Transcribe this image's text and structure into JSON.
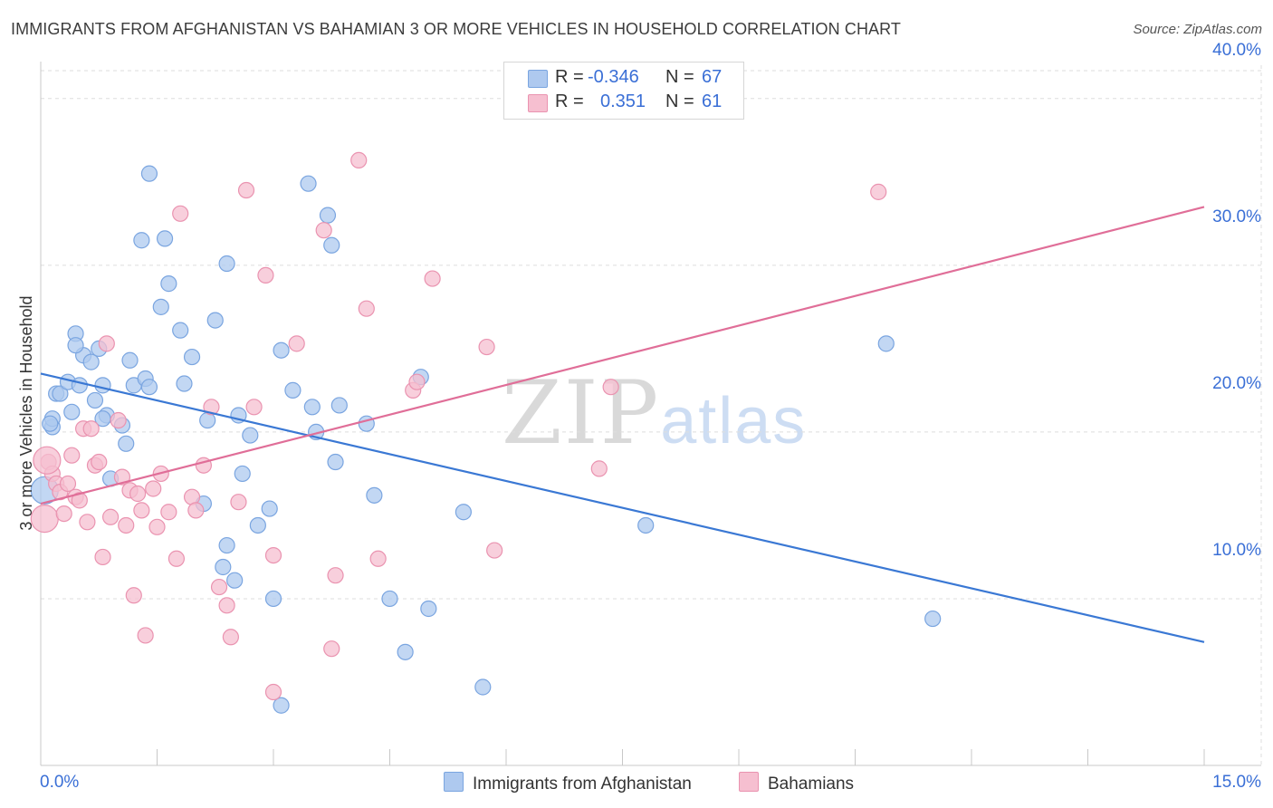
{
  "header": {
    "title": "IMMIGRANTS FROM AFGHANISTAN VS BAHAMIAN 3 OR MORE VEHICLES IN HOUSEHOLD CORRELATION CHART",
    "source": "Source: ZipAtlas.com"
  },
  "watermark": {
    "zip": "ZIP",
    "atlas": "atlas"
  },
  "legend": {
    "rows": [
      {
        "r_label": "R =",
        "r_value": "-0.346",
        "n_label": "N =",
        "n_value": "67"
      },
      {
        "r_label": "R =",
        "r_value": "0.351",
        "n_label": "N =",
        "n_value": "61"
      }
    ]
  },
  "colors": {
    "blue_fill": "#aec9ef",
    "blue_stroke": "#7aa5e0",
    "blue_line": "#3a78d4",
    "pink_fill": "#f6bfd0",
    "pink_stroke": "#ea93b0",
    "pink_line": "#e06e98",
    "axis_label": "#3a6fd6",
    "grid": "#dedede"
  },
  "chart_data": {
    "type": "scatter",
    "title": "IMMIGRANTS FROM AFGHANISTAN VS BAHAMIAN 3 OR MORE VEHICLES IN HOUSEHOLD CORRELATION CHART",
    "xlabel": "",
    "ylabel": "3 or more Vehicles in Household",
    "xlim": [
      0,
      15
    ],
    "ylim": [
      0,
      42
    ],
    "x_tick_labels": [
      "0.0%",
      "15.0%"
    ],
    "y_ticks": [
      10,
      20,
      30,
      40
    ],
    "y_tick_labels": [
      "10.0%",
      "20.0%",
      "30.0%",
      "40.0%"
    ],
    "series": [
      {
        "name": "Immigrants from Afghanistan",
        "color": "blue",
        "trend": {
          "x": [
            0,
            15
          ],
          "y": [
            23.5,
            7.4
          ]
        },
        "points": [
          [
            0.05,
            16.5
          ],
          [
            0.15,
            20.3
          ],
          [
            0.2,
            22.3
          ],
          [
            0.15,
            20.8
          ],
          [
            0.25,
            22.3
          ],
          [
            0.35,
            23.0
          ],
          [
            0.45,
            25.9
          ],
          [
            0.4,
            21.2
          ],
          [
            0.55,
            24.6
          ],
          [
            0.5,
            22.8
          ],
          [
            0.45,
            25.2
          ],
          [
            0.75,
            25.0
          ],
          [
            0.7,
            21.9
          ],
          [
            0.8,
            22.8
          ],
          [
            0.85,
            21.0
          ],
          [
            0.8,
            20.8
          ],
          [
            1.05,
            20.4
          ],
          [
            1.15,
            24.3
          ],
          [
            1.2,
            22.8
          ],
          [
            1.35,
            23.2
          ],
          [
            1.1,
            19.3
          ],
          [
            1.4,
            22.7
          ],
          [
            1.3,
            31.5
          ],
          [
            1.6,
            31.6
          ],
          [
            1.65,
            28.9
          ],
          [
            1.55,
            27.5
          ],
          [
            1.4,
            35.5
          ],
          [
            1.8,
            26.1
          ],
          [
            1.85,
            22.9
          ],
          [
            1.95,
            24.5
          ],
          [
            2.15,
            20.7
          ],
          [
            2.25,
            26.7
          ],
          [
            2.4,
            30.1
          ],
          [
            2.55,
            21.0
          ],
          [
            2.6,
            17.5
          ],
          [
            2.7,
            19.8
          ],
          [
            2.1,
            15.7
          ],
          [
            2.4,
            13.2
          ],
          [
            2.35,
            11.9
          ],
          [
            2.5,
            11.1
          ],
          [
            2.8,
            14.4
          ],
          [
            2.95,
            15.4
          ],
          [
            3.0,
            10.0
          ],
          [
            3.1,
            24.9
          ],
          [
            3.25,
            22.5
          ],
          [
            3.45,
            34.9
          ],
          [
            3.5,
            21.5
          ],
          [
            3.55,
            20.0
          ],
          [
            3.7,
            33.0
          ],
          [
            3.75,
            31.2
          ],
          [
            3.8,
            18.2
          ],
          [
            3.85,
            21.6
          ],
          [
            4.2,
            20.5
          ],
          [
            4.3,
            16.2
          ],
          [
            4.5,
            10.0
          ],
          [
            4.7,
            6.8
          ],
          [
            4.9,
            23.3
          ],
          [
            5.0,
            9.4
          ],
          [
            5.45,
            15.2
          ],
          [
            5.7,
            4.7
          ],
          [
            3.1,
            3.6
          ],
          [
            7.8,
            14.4
          ],
          [
            10.9,
            25.3
          ],
          [
            11.5,
            8.8
          ],
          [
            0.9,
            17.2
          ],
          [
            0.65,
            24.2
          ],
          [
            0.12,
            20.5
          ]
        ]
      },
      {
        "name": "Bahamians",
        "color": "pink",
        "trend": {
          "x": [
            0,
            15
          ],
          "y": [
            15.7,
            33.5
          ]
        },
        "points": [
          [
            0.05,
            14.8
          ],
          [
            0.1,
            18.2
          ],
          [
            0.15,
            17.5
          ],
          [
            0.2,
            16.9
          ],
          [
            0.25,
            16.4
          ],
          [
            0.3,
            15.1
          ],
          [
            0.35,
            16.9
          ],
          [
            0.4,
            18.6
          ],
          [
            0.45,
            16.1
          ],
          [
            0.5,
            15.9
          ],
          [
            0.55,
            20.2
          ],
          [
            0.6,
            14.6
          ],
          [
            0.65,
            20.2
          ],
          [
            0.7,
            18.0
          ],
          [
            0.75,
            18.2
          ],
          [
            0.8,
            12.5
          ],
          [
            0.85,
            25.3
          ],
          [
            0.9,
            14.9
          ],
          [
            1.0,
            20.7
          ],
          [
            1.05,
            17.3
          ],
          [
            1.1,
            14.4
          ],
          [
            1.15,
            16.5
          ],
          [
            1.2,
            10.2
          ],
          [
            1.3,
            15.3
          ],
          [
            1.35,
            7.8
          ],
          [
            1.45,
            16.6
          ],
          [
            1.5,
            14.3
          ],
          [
            1.55,
            17.5
          ],
          [
            1.65,
            15.2
          ],
          [
            1.75,
            12.4
          ],
          [
            1.8,
            33.1
          ],
          [
            1.95,
            16.1
          ],
          [
            2.0,
            15.3
          ],
          [
            2.1,
            18.0
          ],
          [
            2.2,
            21.5
          ],
          [
            2.3,
            10.7
          ],
          [
            2.4,
            9.6
          ],
          [
            2.45,
            7.7
          ],
          [
            2.55,
            15.8
          ],
          [
            2.65,
            34.5
          ],
          [
            2.75,
            21.5
          ],
          [
            2.9,
            29.4
          ],
          [
            3.0,
            12.6
          ],
          [
            3.0,
            4.4
          ],
          [
            3.3,
            25.3
          ],
          [
            3.65,
            32.1
          ],
          [
            3.75,
            7.0
          ],
          [
            3.8,
            11.4
          ],
          [
            4.1,
            36.3
          ],
          [
            4.2,
            27.4
          ],
          [
            4.35,
            12.4
          ],
          [
            4.8,
            22.5
          ],
          [
            4.85,
            23.0
          ],
          [
            5.05,
            29.2
          ],
          [
            5.75,
            25.1
          ],
          [
            5.85,
            12.9
          ],
          [
            7.2,
            17.8
          ],
          [
            7.35,
            22.7
          ],
          [
            10.8,
            34.4
          ],
          [
            1.25,
            16.3
          ],
          [
            0.08,
            18.3
          ]
        ]
      }
    ]
  },
  "bottom_legend": {
    "series_1": "Immigrants from Afghanistan",
    "series_2": "Bahamians"
  }
}
